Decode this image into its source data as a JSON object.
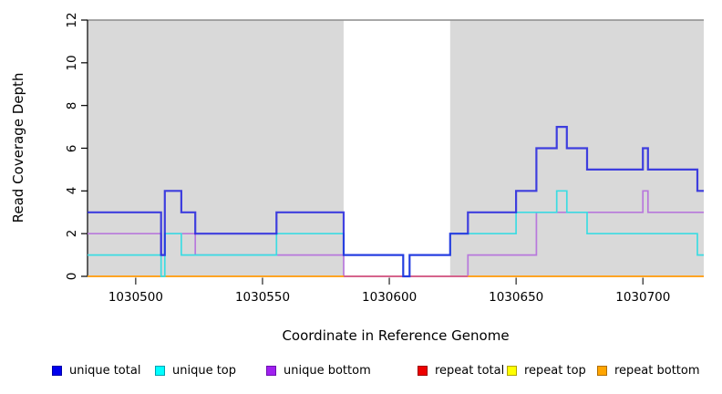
{
  "figure": {
    "y_axis": {
      "label": "Read Coverage Depth",
      "tick_labels": [
        "0",
        "2",
        "4",
        "6",
        "8",
        "10",
        "12"
      ]
    },
    "x_axis": {
      "label": "Coordinate in Reference Genome",
      "tick_labels": [
        "1030500",
        "1030550",
        "1030600",
        "1030650",
        "1030700"
      ]
    }
  },
  "legend": {
    "items": [
      {
        "label": "unique total",
        "color": "#0000ee",
        "border": "#0000a8"
      },
      {
        "label": "unique top",
        "color": "#00ffff",
        "border": "#009fb0"
      },
      {
        "label": "unique bottom",
        "color": "#a020f0",
        "border": "#6d10b0"
      },
      {
        "label": "repeat total",
        "color": "#ee0000",
        "border": "#9e0000"
      },
      {
        "label": "repeat top",
        "color": "#ffff00",
        "border": "#b0a400"
      },
      {
        "label": "repeat bottom",
        "color": "#ffa500",
        "border": "#b06e00"
      }
    ]
  },
  "chart_data": {
    "type": "line",
    "subtype": "step-coverage",
    "title": "",
    "xlabel": "Coordinate in Reference Genome",
    "ylabel": "Read Coverage Depth",
    "xlim": [
      1030481,
      1030724
    ],
    "ylim": [
      0,
      12
    ],
    "x_ticks": [
      1030500,
      1030550,
      1030600,
      1030650,
      1030700
    ],
    "y_ticks": [
      0,
      2,
      4,
      6,
      8,
      10,
      12
    ],
    "grid": false,
    "legend_position": "bottom",
    "plot_background": "#d9d9d9",
    "background_bands": [
      {
        "from": 1030481,
        "to": 1030582,
        "color": "#d9d9d9"
      },
      {
        "from": 1030582,
        "to": 1030624,
        "color": "#ffffff"
      },
      {
        "from": 1030624,
        "to": 1030724,
        "color": "#d9d9d9"
      }
    ],
    "draw_order": [
      "repeat total",
      "repeat top",
      "unique bottom",
      "no repeat coverage baseline",
      "repeat bottom",
      "unique top",
      "unique total"
    ],
    "series": [
      {
        "name": "unique total",
        "color": "#1c1cdf",
        "opacity": 0.82,
        "width": 2.2,
        "steps": [
          [
            1030481,
            3
          ],
          [
            1030510,
            1
          ],
          [
            1030511.5,
            4
          ],
          [
            1030518,
            3
          ],
          [
            1030523.5,
            2
          ],
          [
            1030555.5,
            3
          ],
          [
            1030582,
            1
          ],
          [
            1030605.5,
            0
          ],
          [
            1030608,
            1
          ],
          [
            1030624,
            2
          ],
          [
            1030631,
            3
          ],
          [
            1030650,
            4
          ],
          [
            1030658,
            6
          ],
          [
            1030666,
            7
          ],
          [
            1030670,
            6
          ],
          [
            1030678,
            5
          ],
          [
            1030700,
            6
          ],
          [
            1030702,
            5
          ],
          [
            1030721.5,
            4
          ]
        ]
      },
      {
        "name": "unique top",
        "color": "#3cdce2",
        "opacity": 1,
        "width": 1.7,
        "steps": [
          [
            1030481,
            1
          ],
          [
            1030510,
            0
          ],
          [
            1030511.5,
            2
          ],
          [
            1030518,
            1
          ],
          [
            1030555.5,
            2
          ],
          [
            1030582,
            1
          ],
          [
            1030605.5,
            0
          ],
          [
            1030608,
            1
          ],
          [
            1030624,
            2
          ],
          [
            1030650,
            3
          ],
          [
            1030666,
            4
          ],
          [
            1030670,
            3
          ],
          [
            1030678,
            2
          ],
          [
            1030721.5,
            1
          ]
        ]
      },
      {
        "name": "unique bottom",
        "color": "#b878dc",
        "opacity": 1,
        "width": 1.7,
        "steps": [
          [
            1030481,
            2
          ],
          [
            1030510,
            1
          ],
          [
            1030511.5,
            2
          ],
          [
            1030523.5,
            1
          ],
          [
            1030582,
            0
          ],
          [
            1030631,
            1
          ],
          [
            1030658,
            3
          ],
          [
            1030700,
            4
          ],
          [
            1030702,
            3
          ]
        ]
      },
      {
        "name": "repeat total",
        "color": "#e03030",
        "opacity": 1,
        "width": 1.5,
        "steps": [
          [
            1030481,
            0
          ]
        ]
      },
      {
        "name": "repeat top",
        "color": "#f5f531",
        "opacity": 1,
        "width": 1.5,
        "steps": [
          [
            1030481,
            0
          ]
        ]
      },
      {
        "name": "repeat bottom",
        "color": "#ffa424",
        "opacity": 1,
        "width": 2,
        "steps": [
          [
            1030481,
            0
          ],
          [
            1030582,
            null
          ],
          [
            1030631,
            0
          ]
        ]
      },
      {
        "name": "no repeat coverage baseline",
        "color": "#d85f85",
        "opacity": 1,
        "width": 1.7,
        "steps": [
          [
            1030582,
            0
          ],
          [
            1030631,
            null
          ]
        ]
      }
    ]
  }
}
